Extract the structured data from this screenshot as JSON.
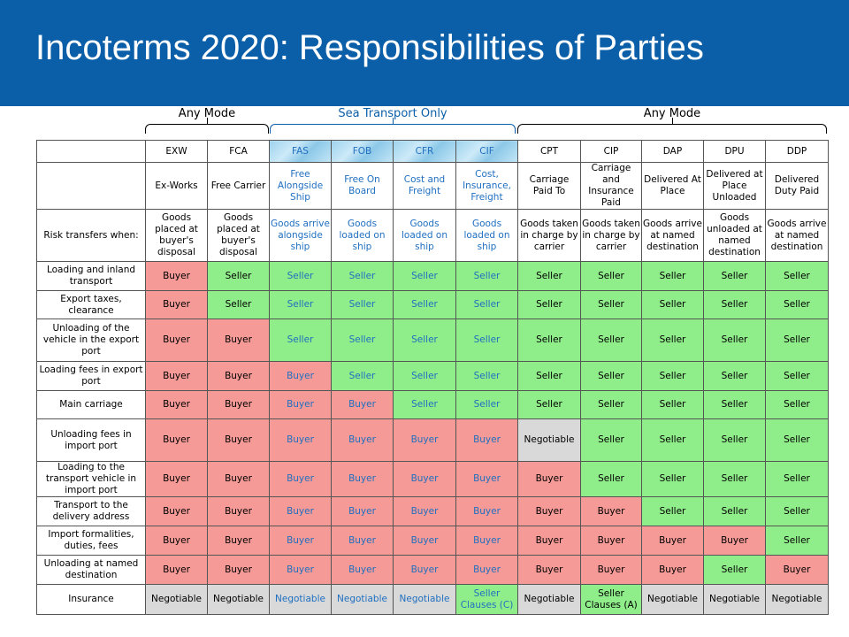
{
  "title": "Incoterms 2020: Responsibilities of Parties",
  "groups": {
    "any_mode_left": "Any Mode",
    "sea": "Sea Transport Only",
    "any_mode_right": "Any Mode"
  },
  "colors": {
    "header": "#0b5ea8",
    "buyer": "#f59a96",
    "seller": "#90ee8a",
    "negotiable": "#d9d9d9",
    "sea_text": "#1f6fc0"
  },
  "terms": [
    {
      "code": "EXW",
      "name": "Ex-Works",
      "risk": "Goods placed at buyer's disposal",
      "sea": false
    },
    {
      "code": "FCA",
      "name": "Free Carrier",
      "risk": "Goods placed at buyer's disposal",
      "sea": false
    },
    {
      "code": "FAS",
      "name": "Free Alongside Ship",
      "risk": "Goods arrive alongside ship",
      "sea": true
    },
    {
      "code": "FOB",
      "name": "Free On Board",
      "risk": "Goods loaded on ship",
      "sea": true
    },
    {
      "code": "CFR",
      "name": "Cost and Freight",
      "risk": "Goods loaded on ship",
      "sea": true
    },
    {
      "code": "CIF",
      "name": "Cost, Insurance, Freight",
      "risk": "Goods loaded on ship",
      "sea": true
    },
    {
      "code": "CPT",
      "name": "Carriage Paid To",
      "risk": "Goods taken in charge by carrier",
      "sea": false
    },
    {
      "code": "CIP",
      "name": "Carriage and Insurance Paid",
      "risk": "Goods taken in charge by carrier",
      "sea": false
    },
    {
      "code": "DAP",
      "name": "Delivered At Place",
      "risk": "Goods arrive at named destination",
      "sea": false
    },
    {
      "code": "DPU",
      "name": "Delivered at Place Unloaded",
      "risk": "Goods unloaded at named destination",
      "sea": false
    },
    {
      "code": "DDP",
      "name": "Delivered Duty Paid",
      "risk": "Goods arrive at named destination",
      "sea": false
    }
  ],
  "risk_label": "Risk transfers when:",
  "rows": [
    {
      "label": "Loading and inland transport",
      "values": [
        "Buyer",
        "Seller",
        "Seller",
        "Seller",
        "Seller",
        "Seller",
        "Seller",
        "Seller",
        "Seller",
        "Seller",
        "Seller"
      ]
    },
    {
      "label": "Export taxes, clearance",
      "values": [
        "Buyer",
        "Seller",
        "Seller",
        "Seller",
        "Seller",
        "Seller",
        "Seller",
        "Seller",
        "Seller",
        "Seller",
        "Seller"
      ]
    },
    {
      "label": "Unloading of the vehicle in the export port",
      "values": [
        "Buyer",
        "Buyer",
        "Seller",
        "Seller",
        "Seller",
        "Seller",
        "Seller",
        "Seller",
        "Seller",
        "Seller",
        "Seller"
      ]
    },
    {
      "label": "Loading fees in export port",
      "values": [
        "Buyer",
        "Buyer",
        "Buyer",
        "Seller",
        "Seller",
        "Seller",
        "Seller",
        "Seller",
        "Seller",
        "Seller",
        "Seller"
      ]
    },
    {
      "label": "Main carriage",
      "values": [
        "Buyer",
        "Buyer",
        "Buyer",
        "Buyer",
        "Seller",
        "Seller",
        "Seller",
        "Seller",
        "Seller",
        "Seller",
        "Seller"
      ]
    },
    {
      "label": "Unloading fees in import port",
      "values": [
        "Buyer",
        "Buyer",
        "Buyer",
        "Buyer",
        "Buyer",
        "Buyer",
        "Negotiable",
        "Seller",
        "Seller",
        "Seller",
        "Seller"
      ]
    },
    {
      "label": "Loading to the transport vehicle in import port",
      "values": [
        "Buyer",
        "Buyer",
        "Buyer",
        "Buyer",
        "Buyer",
        "Buyer",
        "Buyer",
        "Seller",
        "Seller",
        "Seller",
        "Seller"
      ]
    },
    {
      "label": "Transport to the delivery address",
      "values": [
        "Buyer",
        "Buyer",
        "Buyer",
        "Buyer",
        "Buyer",
        "Buyer",
        "Buyer",
        "Buyer",
        "Seller",
        "Seller",
        "Seller"
      ]
    },
    {
      "label": "Import formalities, duties, fees",
      "values": [
        "Buyer",
        "Buyer",
        "Buyer",
        "Buyer",
        "Buyer",
        "Buyer",
        "Buyer",
        "Buyer",
        "Buyer",
        "Buyer",
        "Seller"
      ]
    },
    {
      "label": "Unloading at named destination",
      "values": [
        "Buyer",
        "Buyer",
        "Buyer",
        "Buyer",
        "Buyer",
        "Buyer",
        "Buyer",
        "Buyer",
        "Buyer",
        "Seller",
        "Buyer"
      ]
    },
    {
      "label": "Insurance",
      "values": [
        "Negotiable",
        "Negotiable",
        "Negotiable",
        "Negotiable",
        "Negotiable",
        "Seller Clauses (C)",
        "Negotiable",
        "Seller Clauses (A)",
        "Negotiable",
        "Negotiable",
        "Negotiable"
      ]
    }
  ]
}
